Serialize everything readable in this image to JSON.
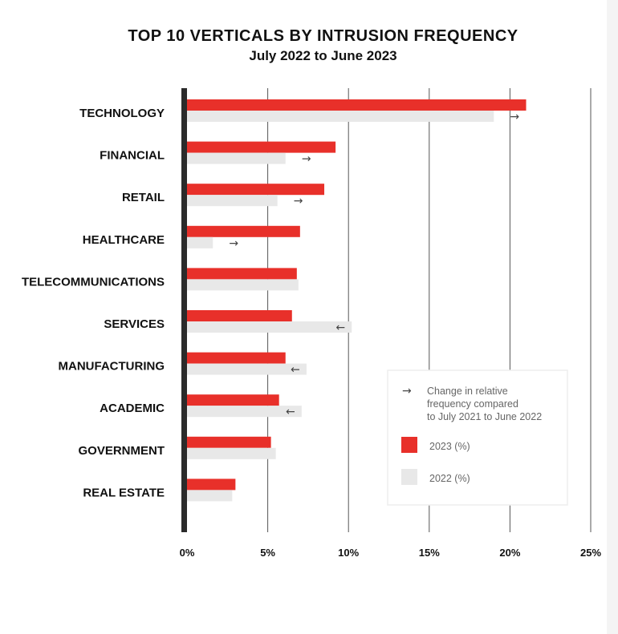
{
  "chart_data": {
    "type": "bar",
    "orientation": "horizontal",
    "title": "TOP 10 VERTICALS BY INTRUSION FREQUENCY",
    "subtitle": "July 2022 to June 2023",
    "categories": [
      "TECHNOLOGY",
      "FINANCIAL",
      "RETAIL",
      "HEALTHCARE",
      "TELECOMMUNICATIONS",
      "SERVICES",
      "MANUFACTURING",
      "ACADEMIC",
      "GOVERNMENT",
      "REAL ESTATE"
    ],
    "series": [
      {
        "name": "2023 (%)",
        "color": "#e8302a",
        "values": [
          21.0,
          9.2,
          8.5,
          7.0,
          6.8,
          6.5,
          6.1,
          5.7,
          5.2,
          3.0
        ]
      },
      {
        "name": "2022 (%)",
        "color": "#e8e8e8",
        "values": [
          19.0,
          6.1,
          5.6,
          1.6,
          6.9,
          10.2,
          7.4,
          7.1,
          5.5,
          2.8
        ]
      }
    ],
    "change_arrows": [
      "→",
      "→",
      "→",
      "→",
      "",
      "←",
      "←",
      "←",
      "",
      ""
    ],
    "xlim": [
      0,
      25
    ],
    "xticks": [
      0,
      5,
      10,
      15,
      20,
      25
    ],
    "xtick_labels": [
      "0%",
      "5%",
      "10%",
      "15%",
      "20%",
      "25%"
    ],
    "grid": true,
    "legend": {
      "placement": "bottom-right",
      "arrow_glyph": "→",
      "arrow_note_lines": [
        "Change in relative",
        "frequency compared",
        "to July 2021 to June 2022"
      ],
      "entries": [
        "2023 (%)",
        "2022 (%)"
      ]
    }
  }
}
